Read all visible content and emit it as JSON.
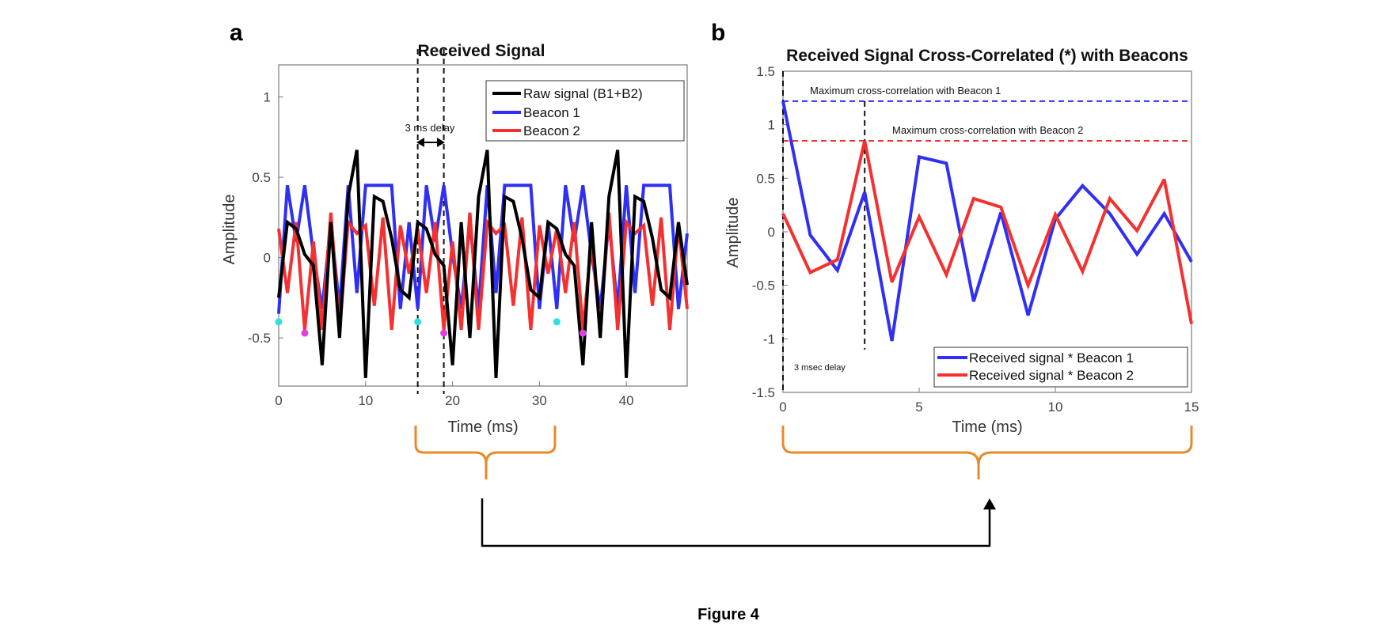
{
  "figure_caption": "Figure 4",
  "colors": {
    "raw": "#000000",
    "beacon1": "#2f2ff5",
    "beacon2": "#f53030",
    "beacon1_marker": "#2fe0e0",
    "beacon2_marker": "#e040e0",
    "brace": "#e8892a",
    "arrow": "#000000"
  },
  "chart_data": [
    {
      "panel": "a",
      "type": "line",
      "title": "Received Signal",
      "xlabel": "Time (ms)",
      "ylabel": "Amplitude",
      "xlim": [
        0,
        47
      ],
      "ylim": [
        -0.8,
        1.2
      ],
      "xticks": [
        0,
        10,
        20,
        30,
        40
      ],
      "yticks": [
        -0.5,
        0,
        0.5,
        1
      ],
      "ytick_labels": [
        "-0.5",
        "0",
        "0.5",
        "1"
      ],
      "legend_position": "top-right",
      "x": [
        0,
        1,
        2,
        3,
        4,
        5,
        6,
        7,
        8,
        9,
        10,
        11,
        12,
        13,
        14,
        15,
        16,
        17,
        18,
        19,
        20,
        21,
        22,
        23,
        24,
        25,
        26,
        27,
        28,
        29,
        30,
        31,
        32,
        33,
        34,
        35,
        36,
        37,
        38,
        39,
        40,
        41,
        42,
        43,
        44,
        45,
        46,
        47
      ],
      "series": [
        {
          "name": "Beacon 1",
          "color_key": "beacon1",
          "values": [
            -0.35,
            0.45,
            0.1,
            0.45,
            0.02,
            -0.32,
            0.22,
            -0.32,
            0.45,
            -0.22,
            0.45,
            0.45,
            0.45,
            0.45,
            -0.32,
            0.22,
            -0.32,
            0.45,
            0.1,
            0.45,
            0.02,
            -0.32,
            0.22,
            -0.32,
            0.45,
            -0.22,
            0.45,
            0.45,
            0.45,
            0.45,
            -0.32,
            0.22,
            -0.32,
            0.45,
            0.1,
            0.45,
            0.02,
            -0.32,
            0.22,
            -0.32,
            0.45,
            -0.22,
            0.45,
            0.45,
            0.45,
            0.45,
            -0.32,
            0.15
          ]
        },
        {
          "name": "Beacon 2",
          "color_key": "beacon2",
          "values": [
            0.18,
            -0.22,
            0.22,
            -0.45,
            0.1,
            -0.45,
            0.28,
            -0.45,
            0.22,
            0.15,
            0.2,
            -0.3,
            0.25,
            -0.45,
            0.2,
            -0.1,
            0.18,
            -0.22,
            0.22,
            -0.45,
            0.1,
            -0.45,
            0.28,
            -0.45,
            0.22,
            0.15,
            0.2,
            -0.3,
            0.25,
            -0.45,
            0.2,
            -0.1,
            0.18,
            -0.22,
            0.22,
            -0.45,
            0.1,
            -0.45,
            0.28,
            -0.45,
            0.22,
            0.15,
            0.2,
            -0.3,
            0.25,
            -0.45,
            0.2,
            -0.32
          ]
        },
        {
          "name": "Raw signal (B1+B2)",
          "color_key": "raw",
          "values": [
            -0.25,
            0.22,
            0.18,
            0.02,
            -0.05,
            -0.67,
            0.22,
            -0.5,
            0.38,
            0.67,
            -0.75,
            0.38,
            0.35,
            0.12,
            -0.2,
            -0.25,
            0.22,
            0.18,
            0.02,
            -0.05,
            -0.67,
            0.22,
            -0.5,
            0.38,
            0.67,
            -0.75,
            0.38,
            0.35,
            0.12,
            -0.2,
            -0.25,
            0.22,
            0.18,
            0.02,
            -0.05,
            -0.67,
            0.22,
            -0.5,
            0.38,
            0.67,
            -0.75,
            0.38,
            0.35,
            0.12,
            -0.2,
            -0.25,
            0.22,
            -0.17
          ]
        }
      ],
      "markers": [
        {
          "series": "Beacon 1",
          "color_key": "beacon1_marker",
          "points": [
            [
              0,
              -0.4
            ],
            [
              16,
              -0.4
            ],
            [
              32,
              -0.4
            ]
          ]
        },
        {
          "series": "Beacon 2",
          "color_key": "beacon2_marker",
          "points": [
            [
              3,
              -0.47
            ],
            [
              19,
              -0.47
            ],
            [
              35,
              -0.47
            ]
          ]
        }
      ],
      "vlines": [
        16,
        19
      ],
      "annotation": "3 ms delay"
    },
    {
      "panel": "b",
      "type": "line",
      "title": "Received Signal Cross-Correlated (*) with Beacons",
      "xlabel": "Time (ms)",
      "ylabel": "Amplitude",
      "xlim": [
        0,
        15
      ],
      "ylim": [
        -1.5,
        1.5
      ],
      "xticks": [
        0,
        5,
        10,
        15
      ],
      "yticks": [
        -1.5,
        -1,
        -0.5,
        0,
        0.5,
        1,
        1.5
      ],
      "ytick_labels": [
        "-1.5",
        "-1",
        "-0.5",
        "0",
        "0.5",
        "1",
        "1.5"
      ],
      "legend_position": "bottom-right",
      "x": [
        0,
        1,
        2,
        3,
        4,
        5,
        6,
        7,
        8,
        9,
        10,
        11,
        12,
        13,
        14,
        15
      ],
      "series": [
        {
          "name": "Received signal * Beacon 1",
          "color_key": "beacon1",
          "values": [
            1.22,
            -0.03,
            -0.36,
            0.37,
            -1.02,
            0.7,
            0.64,
            -0.65,
            0.18,
            -0.78,
            0.12,
            0.43,
            0.17,
            -0.21,
            0.17,
            -0.28
          ]
        },
        {
          "name": "Received signal * Beacon 2",
          "color_key": "beacon2",
          "values": [
            0.17,
            -0.38,
            -0.26,
            0.85,
            -0.47,
            0.14,
            -0.4,
            0.31,
            0.23,
            -0.5,
            0.16,
            -0.37,
            0.31,
            0.01,
            0.49,
            -0.86
          ]
        }
      ],
      "hlines": [
        {
          "y": 1.22,
          "color_key": "beacon1",
          "label": "Maximum cross-correlation with Beacon 1"
        },
        {
          "y": 0.85,
          "color_key": "beacon2",
          "label": "Maximum cross-correlation with Beacon 2"
        }
      ],
      "vlines": [
        0,
        3
      ],
      "annotation": "3 msec delay"
    }
  ]
}
